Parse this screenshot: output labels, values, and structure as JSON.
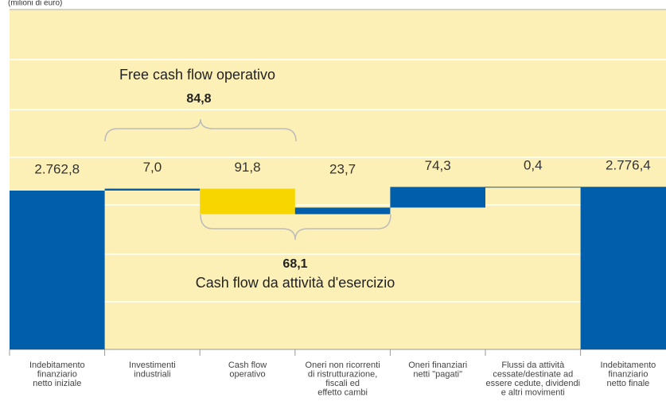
{
  "chart_data": {
    "type": "waterfall",
    "subtitle": "(milioni di euro)",
    "categories": [
      [
        "Indebitamento",
        "finanziario",
        "netto iniziale"
      ],
      [
        "Investimenti",
        "industriali"
      ],
      [
        "Cash flow",
        "operativo"
      ],
      [
        "Oneri non ricorrenti",
        "di ristrutturazione,",
        "fiscali ed",
        "effetto cambi"
      ],
      [
        "Oneri finanziari",
        "netti \"pagati\""
      ],
      [
        "Flussi da attività",
        "cessate/destinate ad",
        "essere cedute, dividendi",
        "e altri movimenti"
      ],
      [
        "Indebitamento",
        "finanziario",
        "netto finale"
      ]
    ],
    "values": [
      2762.8,
      7.0,
      -91.8,
      23.7,
      74.3,
      0.4,
      2776.4
    ],
    "value_labels": [
      "2.762,8",
      "7,0",
      "91,8",
      "23,7",
      "74,3",
      "0,4",
      "2.776,4"
    ],
    "measures": [
      "absolute",
      "relative",
      "relative",
      "relative",
      "relative",
      "relative",
      "total"
    ],
    "colors": [
      "#005eab",
      "#005eab",
      "#f7d600",
      "#005eab",
      "#005eab",
      "#005eab",
      "#005eab"
    ],
    "annotations": {
      "free_cash_flow_label": "Free cash flow operativo",
      "free_cash_flow_value": "84,8",
      "cash_flow_value": "68,1",
      "cash_flow_label": "Cash flow da attività d'esercizio"
    }
  }
}
